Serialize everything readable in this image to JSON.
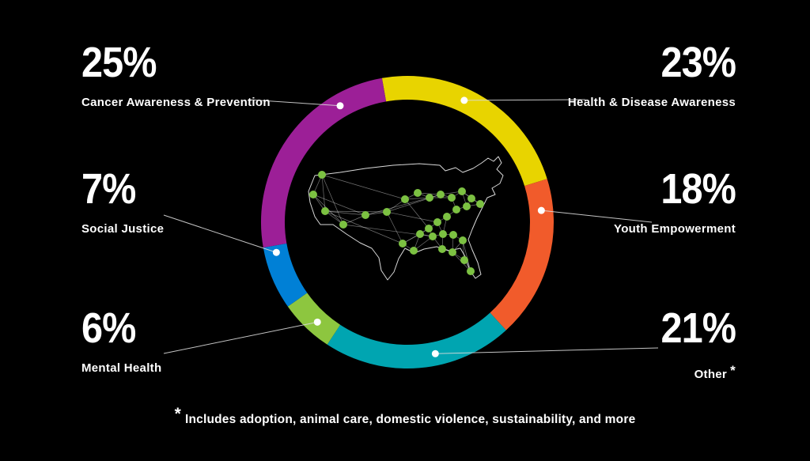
{
  "chart_data": {
    "type": "pie",
    "style": "donut",
    "direction": "clockwise",
    "start_angle_deg": -10,
    "title": "",
    "legend_position": "callouts-around-ring",
    "center_graphic": "us-map-with-network-of-locations",
    "segments": [
      {
        "label": "Health & Disease Awareness",
        "value": 23,
        "color": "#e8d400"
      },
      {
        "label": "Youth Empowerment",
        "value": 18,
        "color": "#f15b2b"
      },
      {
        "label": "Other",
        "value": 21,
        "color": "#00a5b1",
        "note_ref": "*"
      },
      {
        "label": "Mental Health",
        "value": 6,
        "color": "#8dc63f"
      },
      {
        "label": "Social Justice",
        "value": 7,
        "color": "#0080d6"
      },
      {
        "label": "Cancer Awareness & Prevention",
        "value": 25,
        "color": "#9c1f97"
      }
    ],
    "footnote": "* Includes adoption, animal care, domestic violence,  sustainability, and more"
  },
  "callouts": {
    "cancer": {
      "pct": "25%",
      "label": "Cancer Awareness & Prevention"
    },
    "health": {
      "pct": "23%",
      "label": "Health & Disease Awareness"
    },
    "social": {
      "pct": "7%",
      "label": "Social Justice"
    },
    "youth": {
      "pct": "18%",
      "label": "Youth Empowerment"
    },
    "mental": {
      "pct": "6%",
      "label": "Mental Health"
    },
    "other": {
      "pct": "21%",
      "label": "Other",
      "asterisk": "*"
    }
  },
  "footnote": {
    "marker": "*",
    "text": "Includes adoption, animal care, domestic violence,  sustainability, and more"
  },
  "colors": {
    "background": "#000000",
    "text": "#ffffff",
    "leader_line": "#d9d9d9",
    "leader_dot": "#ffffff",
    "map_outline": "#ffffff",
    "map_node": "#7cc142",
    "map_link": "#ffffff"
  }
}
